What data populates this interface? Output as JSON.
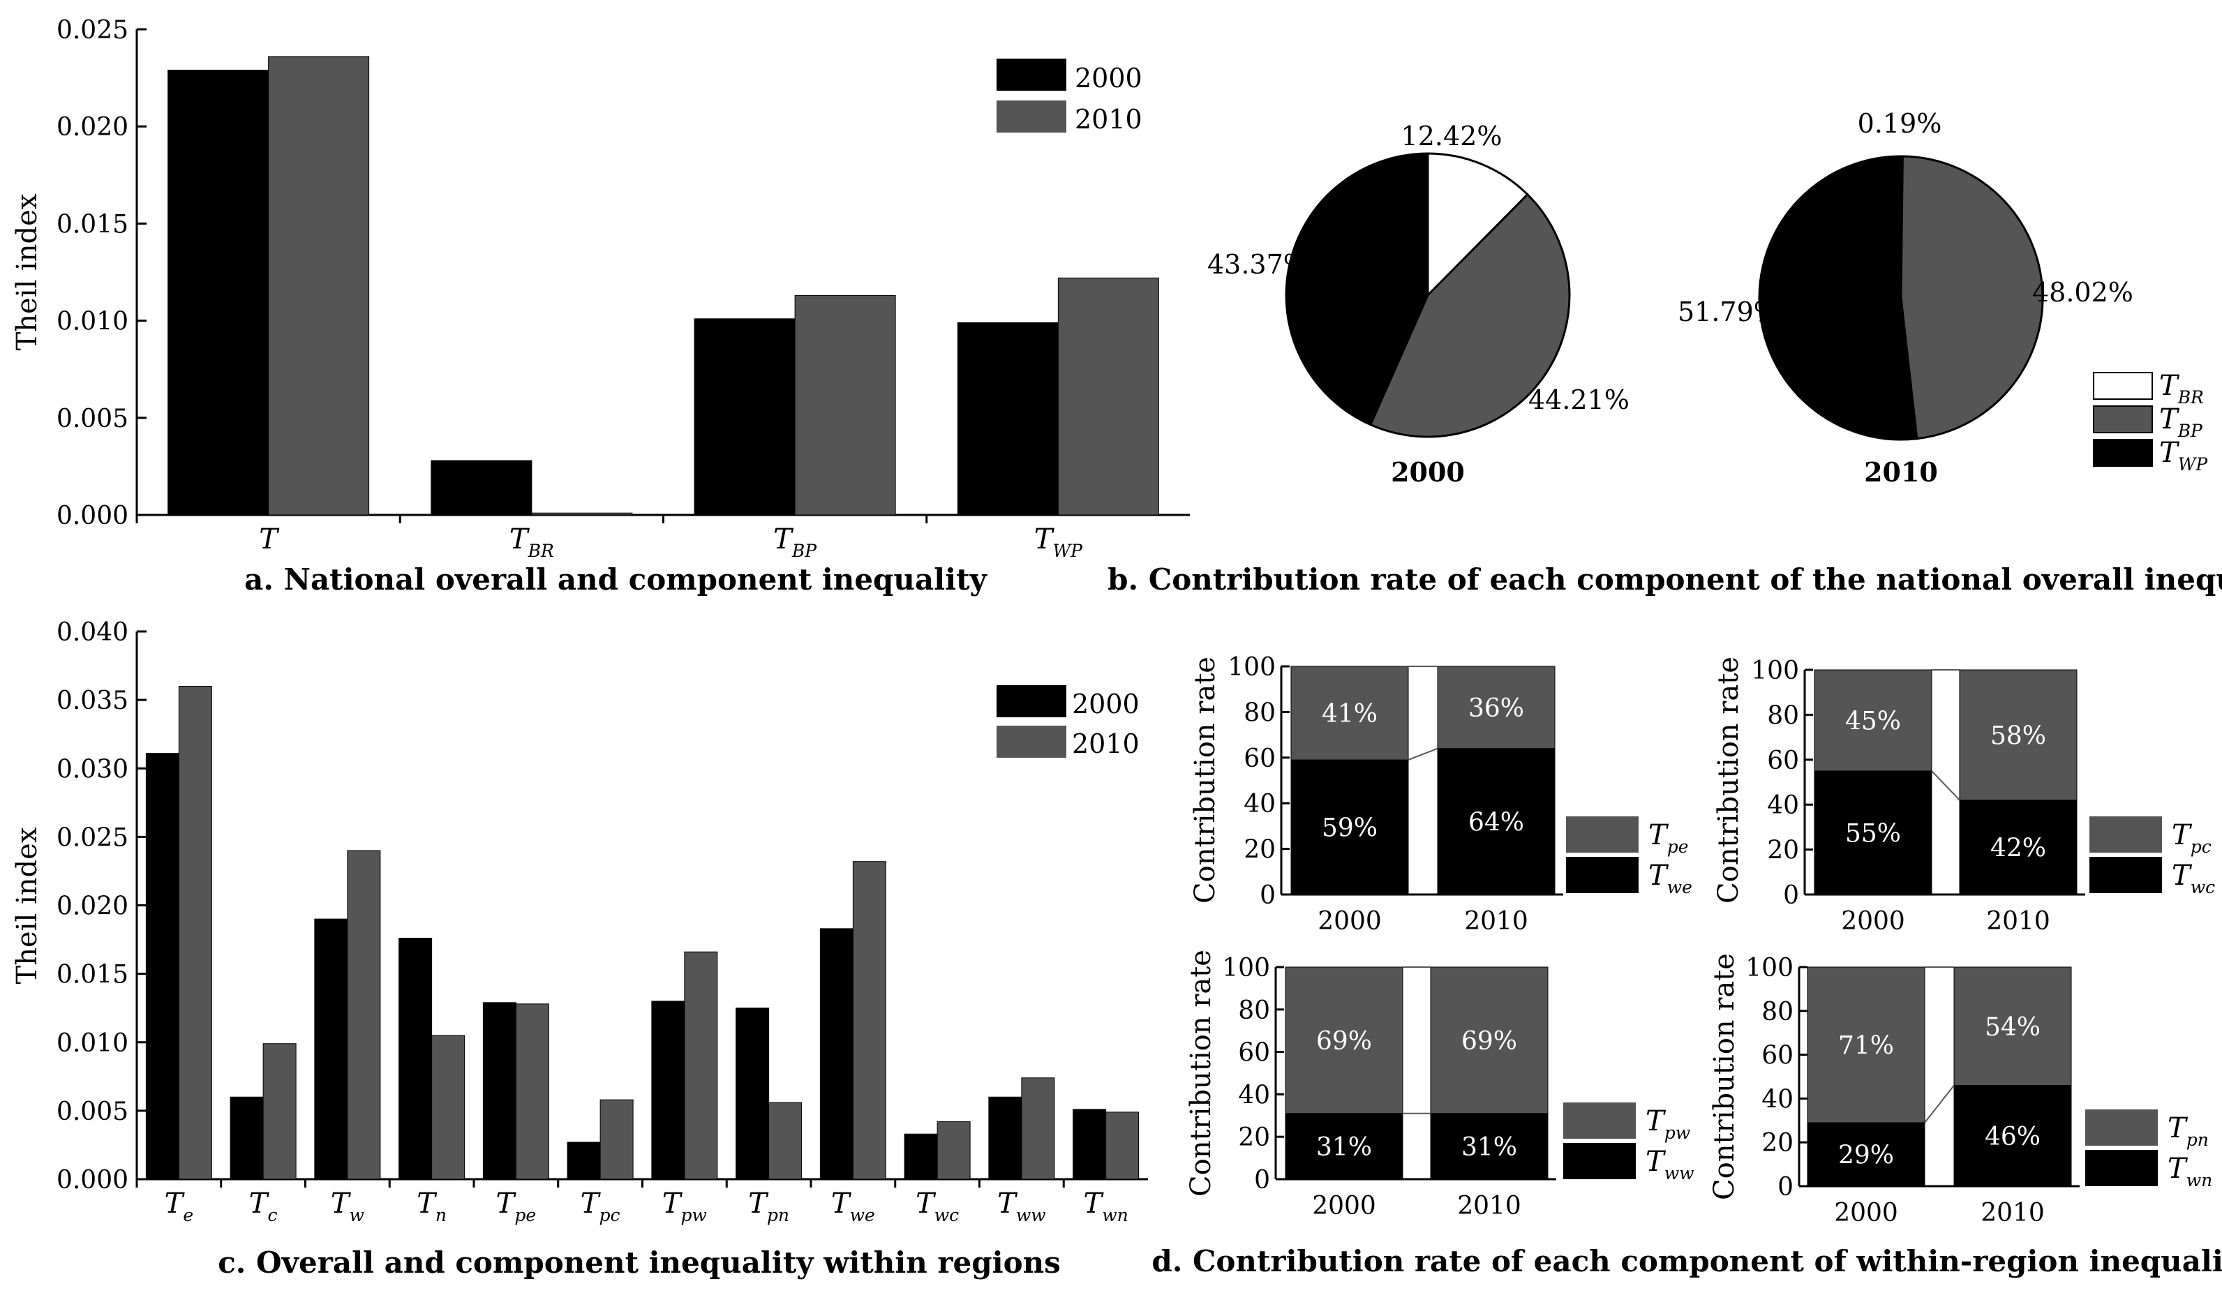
{
  "colors": {
    "y2000": "#000000",
    "y2010": "#555555",
    "tbr": "#ffffff",
    "tbp": "#555555",
    "twp": "#000000"
  },
  "chart_data": [
    {
      "id": "a",
      "type": "bar",
      "title": "a. National overall and component inequality",
      "ylabel": "Theil index",
      "ylim": [
        0,
        0.025
      ],
      "yticks": [
        "0.000",
        "0.005",
        "0.010",
        "0.015",
        "0.020",
        "0.025"
      ],
      "categories": [
        {
          "base": "T",
          "sub": ""
        },
        {
          "base": "T",
          "sub": "BR"
        },
        {
          "base": "T",
          "sub": "BP"
        },
        {
          "base": "T",
          "sub": "WP"
        }
      ],
      "series": [
        {
          "name": "2000",
          "values": [
            0.0229,
            0.0028,
            0.0101,
            0.0099
          ]
        },
        {
          "name": "2010",
          "values": [
            0.0236,
            0.0001,
            0.0113,
            0.0122
          ]
        }
      ],
      "legend": "top-right"
    },
    {
      "id": "b",
      "type": "pie",
      "title": "b. Contribution rate of each component of the  national overall inequality",
      "legend_items": [
        {
          "base": "T",
          "sub": "BR"
        },
        {
          "base": "T",
          "sub": "BP"
        },
        {
          "base": "T",
          "sub": "WP"
        }
      ],
      "pies": [
        {
          "label": "2000",
          "slices": [
            {
              "component": "BR",
              "value": 12.42,
              "label": "12.42%"
            },
            {
              "component": "BP",
              "value": 44.21,
              "label": "44.21%"
            },
            {
              "component": "WP",
              "value": 43.37,
              "label": "43.37%"
            }
          ]
        },
        {
          "label": "2010",
          "slices": [
            {
              "component": "BR",
              "value": 0.19,
              "label": "0.19%"
            },
            {
              "component": "BP",
              "value": 48.02,
              "label": "48.02%"
            },
            {
              "component": "WP",
              "value": 51.79,
              "label": "51.79%"
            }
          ]
        }
      ]
    },
    {
      "id": "c",
      "type": "bar",
      "title": "c. Overall and component inequality within regions",
      "ylabel": "Theil index",
      "ylim": [
        0,
        0.04
      ],
      "yticks": [
        "0.000",
        "0.005",
        "0.010",
        "0.015",
        "0.020",
        "0.025",
        "0.030",
        "0.035",
        "0.040"
      ],
      "categories": [
        {
          "base": "T",
          "sub": "e"
        },
        {
          "base": "T",
          "sub": "c"
        },
        {
          "base": "T",
          "sub": "w"
        },
        {
          "base": "T",
          "sub": "n"
        },
        {
          "base": "T",
          "sub": "pe"
        },
        {
          "base": "T",
          "sub": "pc"
        },
        {
          "base": "T",
          "sub": "pw"
        },
        {
          "base": "T",
          "sub": "pn"
        },
        {
          "base": "T",
          "sub": "we"
        },
        {
          "base": "T",
          "sub": "wc"
        },
        {
          "base": "T",
          "sub": "ww"
        },
        {
          "base": "T",
          "sub": "wn"
        }
      ],
      "series": [
        {
          "name": "2000",
          "values": [
            0.0311,
            0.006,
            0.019,
            0.0176,
            0.0129,
            0.0027,
            0.013,
            0.0125,
            0.0183,
            0.0033,
            0.006,
            0.0051
          ]
        },
        {
          "name": "2010",
          "values": [
            0.036,
            0.0099,
            0.024,
            0.0105,
            0.0128,
            0.0058,
            0.0166,
            0.0056,
            0.0232,
            0.0042,
            0.0074,
            0.0049
          ]
        }
      ],
      "legend": "top-right"
    },
    {
      "id": "d",
      "type": "bar",
      "stacked": true,
      "title": "d. Contribution rate of each component of within-region inequality",
      "ylabel": "Contribution rate",
      "ylim": [
        0,
        100
      ],
      "yticks": [
        "0",
        "20",
        "40",
        "60",
        "80",
        "100"
      ],
      "categories": [
        "2000",
        "2010"
      ],
      "panels": [
        {
          "top": {
            "base": "T",
            "sub": "pe"
          },
          "bottom": {
            "base": "T",
            "sub": "we"
          },
          "top_values": [
            41,
            36
          ],
          "bottom_values": [
            59,
            64
          ],
          "top_labels": [
            "41%",
            "36%"
          ],
          "bottom_labels": [
            "59%",
            "64%"
          ]
        },
        {
          "top": {
            "base": "T",
            "sub": "pc"
          },
          "bottom": {
            "base": "T",
            "sub": "wc"
          },
          "top_values": [
            45,
            58
          ],
          "bottom_values": [
            55,
            42
          ],
          "top_labels": [
            "45%",
            "58%"
          ],
          "bottom_labels": [
            "55%",
            "42%"
          ]
        },
        {
          "top": {
            "base": "T",
            "sub": "pw"
          },
          "bottom": {
            "base": "T",
            "sub": "ww"
          },
          "top_values": [
            69,
            69
          ],
          "bottom_values": [
            31,
            31
          ],
          "top_labels": [
            "69%",
            "69%"
          ],
          "bottom_labels": [
            "31%",
            "31%"
          ]
        },
        {
          "top": {
            "base": "T",
            "sub": "pn"
          },
          "bottom": {
            "base": "T",
            "sub": "wn"
          },
          "top_values": [
            71,
            54
          ],
          "bottom_values": [
            29,
            46
          ],
          "top_labels": [
            "71%",
            "54%"
          ],
          "bottom_labels": [
            "29%",
            "46%"
          ]
        }
      ]
    }
  ]
}
